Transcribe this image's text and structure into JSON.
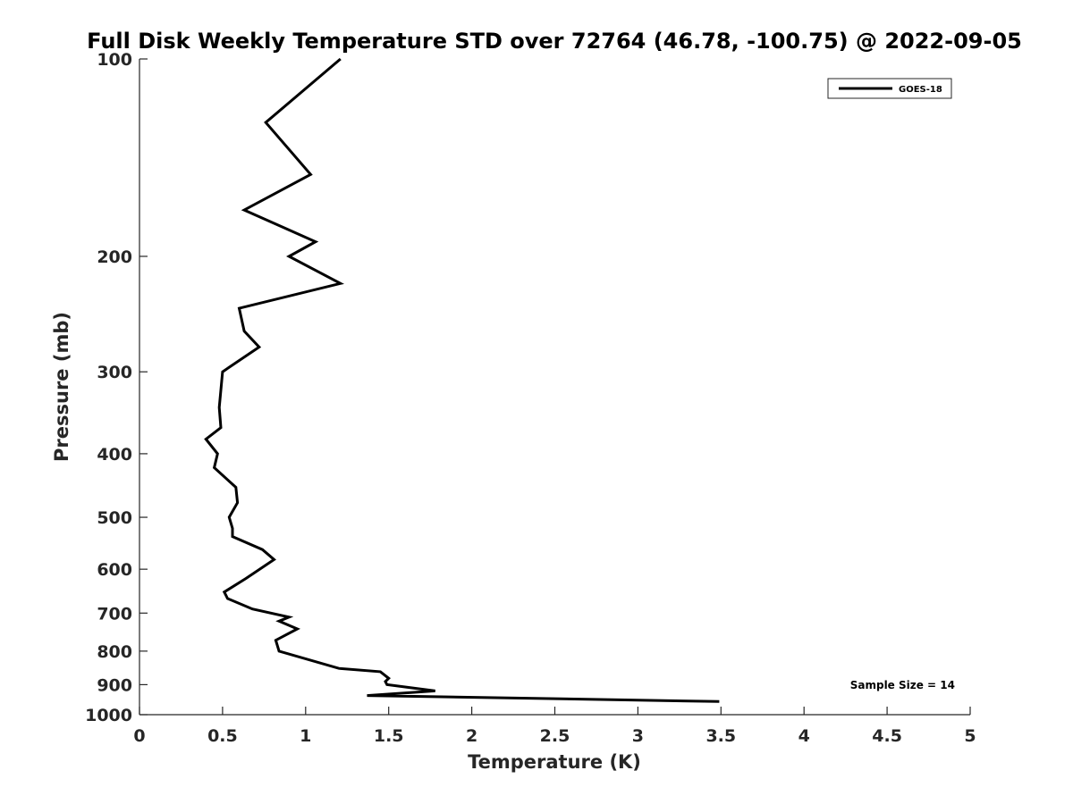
{
  "chart_data": {
    "type": "line",
    "title": "Full Disk Weekly Temperature STD over 72764 (46.78, -100.75) @ 2022-09-05",
    "xlabel": "Temperature (K)",
    "ylabel": "Pressure (mb)",
    "xlim": [
      0,
      5
    ],
    "ylim": [
      1000,
      100
    ],
    "yscale": "log",
    "y_reversed": true,
    "grid": false,
    "legend_position": "top-right",
    "x_ticks": [
      "0",
      "0.5",
      "1",
      "1.5",
      "2",
      "2.5",
      "3",
      "3.5",
      "4",
      "4.5",
      "5"
    ],
    "y_ticks": [
      "100",
      "200",
      "300",
      "400",
      "500",
      "600",
      "700",
      "800",
      "900",
      "1000"
    ],
    "annotation": "Sample Size = 14",
    "line_color": "#000000",
    "series": [
      {
        "name": "GOES-18",
        "points": [
          [
            1.21,
            100
          ],
          [
            0.76,
            125
          ],
          [
            1.03,
            150
          ],
          [
            0.63,
            170
          ],
          [
            1.06,
            190
          ],
          [
            0.9,
            200
          ],
          [
            1.21,
            220
          ],
          [
            0.6,
            240
          ],
          [
            0.63,
            260
          ],
          [
            0.72,
            275
          ],
          [
            0.5,
            300
          ],
          [
            0.48,
            340
          ],
          [
            0.49,
            365
          ],
          [
            0.4,
            380
          ],
          [
            0.47,
            400
          ],
          [
            0.45,
            420
          ],
          [
            0.58,
            450
          ],
          [
            0.59,
            475
          ],
          [
            0.54,
            500
          ],
          [
            0.56,
            520
          ],
          [
            0.56,
            535
          ],
          [
            0.74,
            560
          ],
          [
            0.81,
            580
          ],
          [
            0.64,
            620
          ],
          [
            0.51,
            650
          ],
          [
            0.53,
            665
          ],
          [
            0.68,
            690
          ],
          [
            0.9,
            710
          ],
          [
            0.84,
            720
          ],
          [
            0.95,
            740
          ],
          [
            0.82,
            770
          ],
          [
            0.84,
            800
          ],
          [
            1.2,
            850
          ],
          [
            1.45,
            860
          ],
          [
            1.5,
            880
          ],
          [
            1.48,
            890
          ],
          [
            1.49,
            900
          ],
          [
            1.78,
            920
          ],
          [
            1.37,
            935
          ],
          [
            3.49,
            955
          ]
        ]
      }
    ]
  }
}
